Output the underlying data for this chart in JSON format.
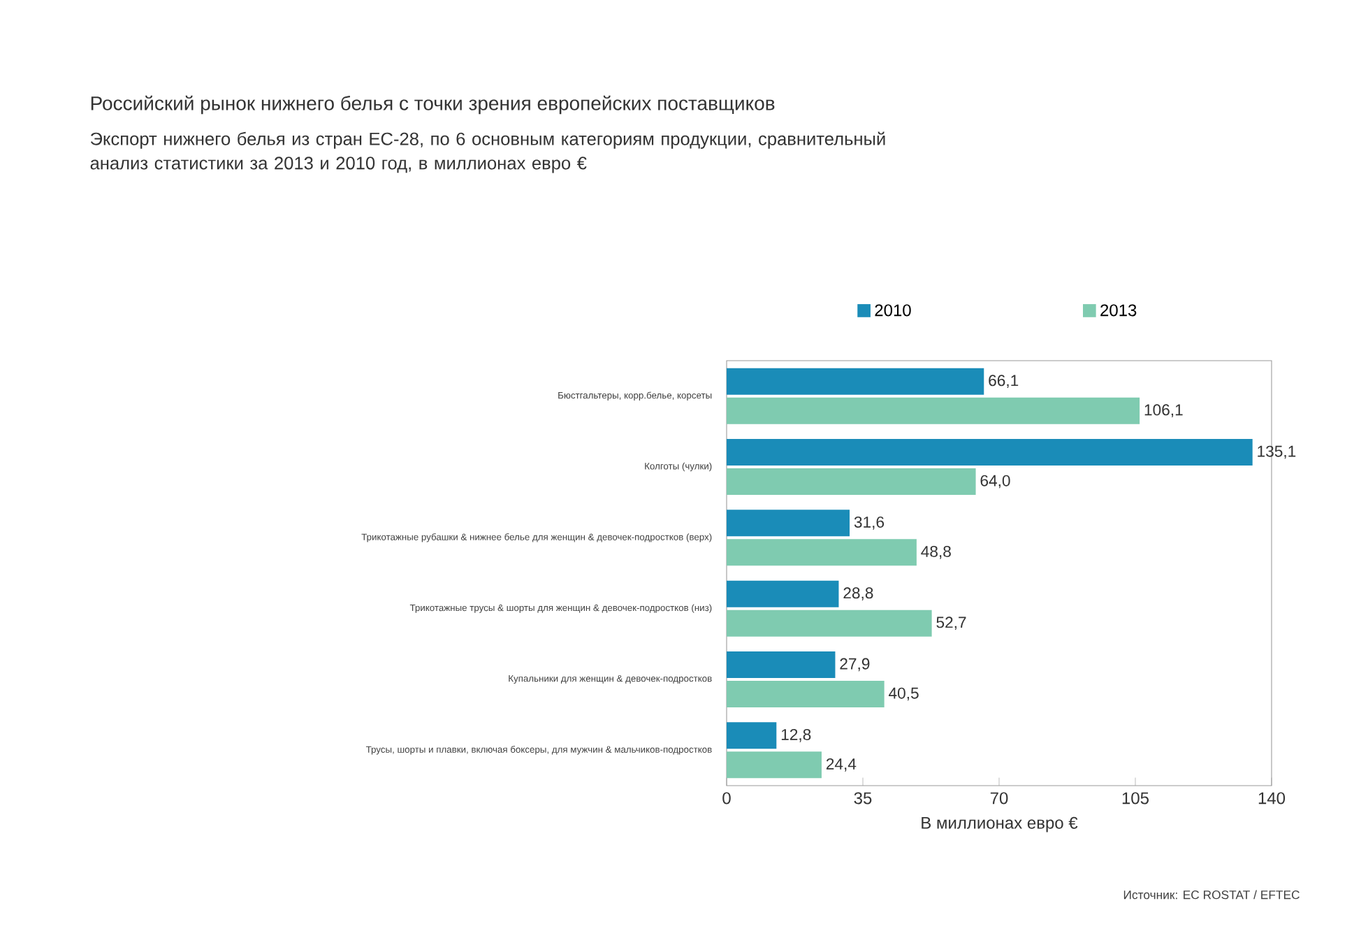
{
  "chart_data": {
    "type": "bar",
    "orientation": "horizontal",
    "title": "Российский рынок нижнего белья с точки зрения европейских поставщиков",
    "subtitle": "Экспорт нижнего белья из стран ЕС-28, по 6 основным категориям продукции, сравнительный анализ статистики за 2013 и 2010 год, в миллионах евро €",
    "xlabel": "В миллионах евро €",
    "annotations": [
      "Источник: EC ROSTAT / EFTEC"
    ],
    "categories": [
      "Бюстгальтеры, корр.белье, корсеты",
      "Колготы (чулки)",
      "Трикотажные рубашки & нижнее белье для женщин & девочек-подростков (верх)",
      "Трикотажные трусы & шорты для женщин & девочек-подростков (низ)",
      "Купальники для женщин & девочек-подростков",
      "Трусы, шорты и плавки, включая боксеры, для мужчин & мальчиков-подростков"
    ],
    "series": [
      {
        "name": "2010",
        "color": "#1a8cb8",
        "values": [
          66.1,
          135.1,
          31.6,
          28.8,
          27.9,
          12.8
        ],
        "value_labels": [
          "66,1",
          "135,1",
          "31,6",
          "28,8",
          "27,9",
          "12,8"
        ]
      },
      {
        "name": "2013",
        "color": "#7fcbb0",
        "values": [
          106.1,
          64.0,
          48.8,
          52.7,
          40.5,
          24.4
        ],
        "value_labels": [
          "106,1",
          "64,0",
          "48,8",
          "52,7",
          "40,5",
          "24,4"
        ]
      }
    ],
    "xlim": [
      0,
      140
    ],
    "xticks": [
      0,
      35,
      70,
      105,
      140
    ],
    "legend": "top",
    "grid": false
  }
}
